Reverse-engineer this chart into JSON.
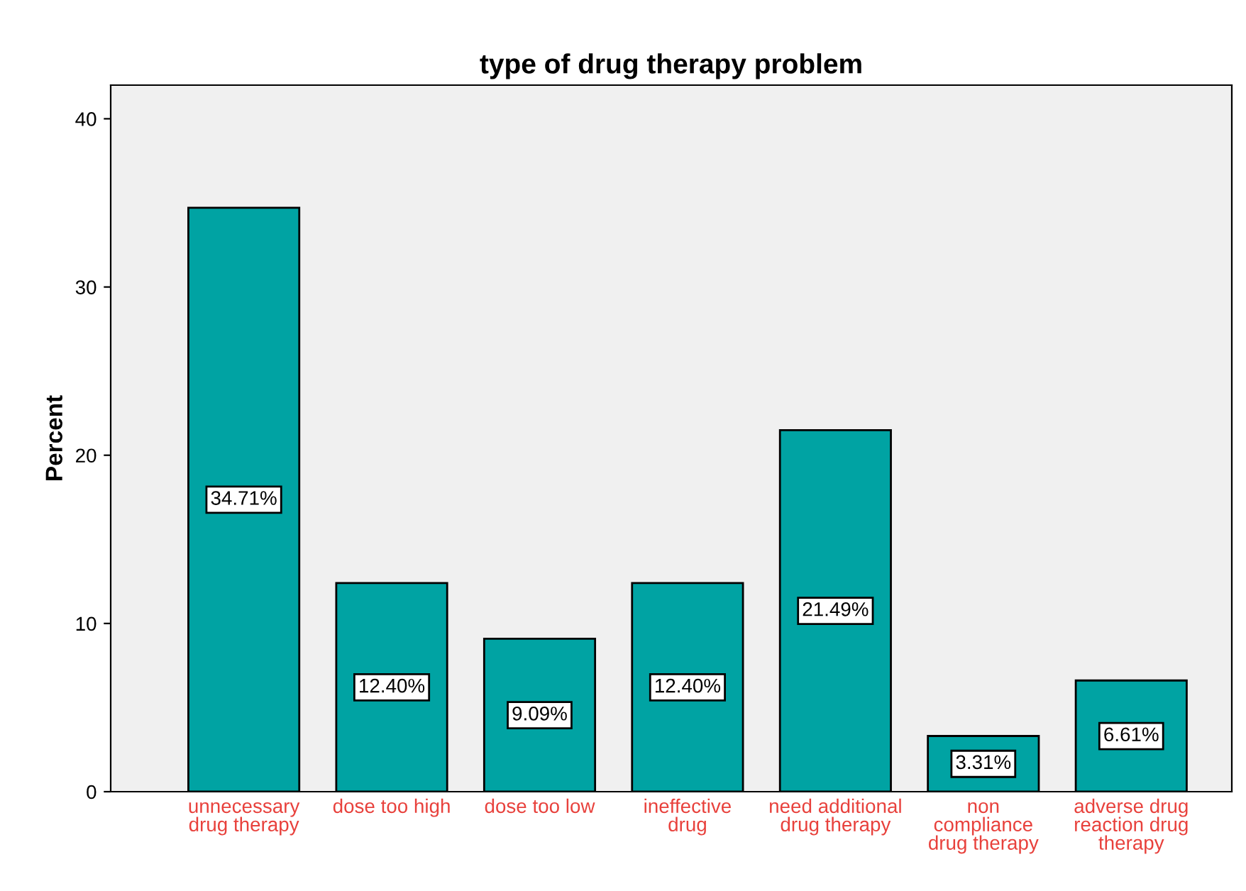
{
  "chart_data": {
    "type": "bar",
    "title": "type of drug therapy problem",
    "ylabel": "Percent",
    "categories": [
      "unnecessary\ndrug therapy",
      "dose too high",
      "dose too low",
      "ineffective\ndrug",
      "need additional\ndrug therapy",
      "non\ncompliance\ndrug therapy",
      "adverse drug\nreaction drug\ntherapy"
    ],
    "values": [
      34.71,
      12.4,
      9.09,
      12.4,
      21.49,
      3.31,
      6.61
    ],
    "value_labels": [
      "34.71%",
      "12.40%",
      "9.09%",
      "12.40%",
      "21.49%",
      "3.31%",
      "6.61%"
    ],
    "color": "#00a3a3",
    "ylim": [
      0,
      42
    ],
    "yticks": [
      0,
      10,
      20,
      30,
      40
    ],
    "grid": false,
    "legend": false
  }
}
